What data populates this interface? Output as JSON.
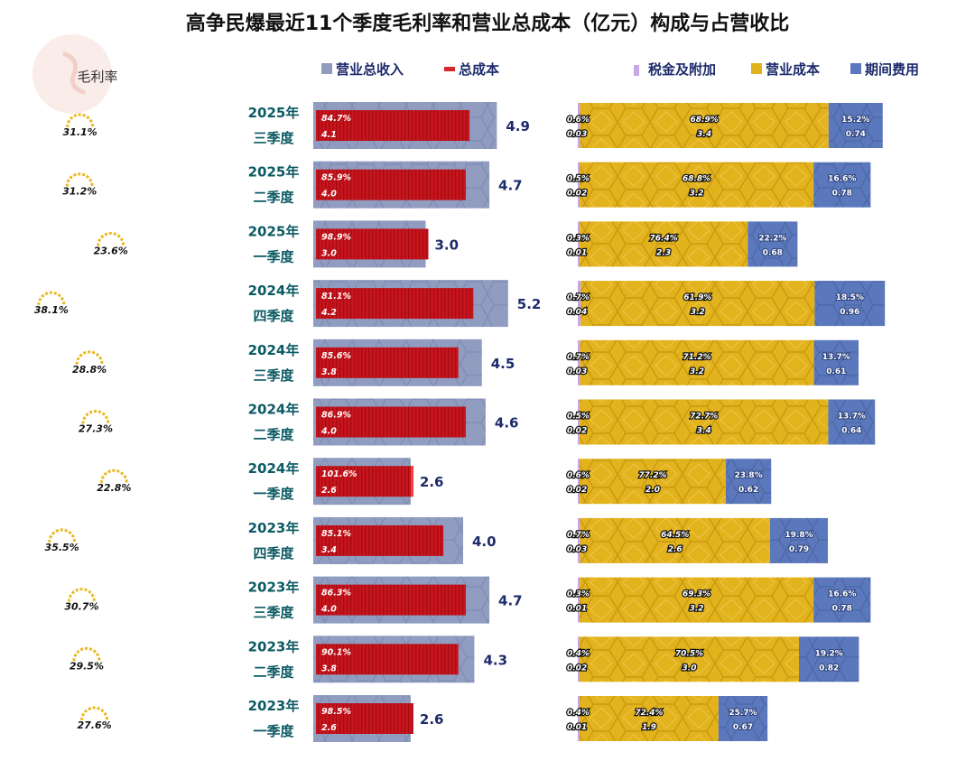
{
  "title": "高争民爆最近11个季度毛利率和营业总成本（亿元）构成与占营收比",
  "gross_margin_header": "毛利率",
  "legend_left": [
    {
      "label": "营业总收入",
      "color": "#8f9cc0"
    },
    {
      "label": "总成本",
      "color": "#d9272e"
    }
  ],
  "legend_right": [
    {
      "label": "税金及附加",
      "color": "#c9a6e6"
    },
    {
      "label": "营业成本",
      "color": "#e0b21c"
    },
    {
      "label": "期间费用",
      "color": "#5a78bb"
    }
  ],
  "chart_data": {
    "type": "bar",
    "title": "高争民爆最近11个季度毛利率和营业总成本（亿元）构成与占营收比",
    "periods": [
      {
        "year": "2025年",
        "quarter": "三季度",
        "gross_margin": "31.1%",
        "revenue": 4.9,
        "revenue_label": "4.9",
        "total_cost": 4.1,
        "total_cost_label": "4.1",
        "cost_ratio": "84.7%",
        "tax": 0.03,
        "tax_label": "0.03",
        "tax_pct": "0.6%",
        "op_cost": 3.4,
        "op_cost_label": "3.4",
        "op_cost_pct": "68.9%",
        "expense": 0.74,
        "expense_label": "0.74",
        "expense_pct": "15.2%"
      },
      {
        "year": "2025年",
        "quarter": "二季度",
        "gross_margin": "31.2%",
        "revenue": 4.7,
        "revenue_label": "4.7",
        "total_cost": 4.0,
        "total_cost_label": "4.0",
        "cost_ratio": "85.9%",
        "tax": 0.02,
        "tax_label": "0.02",
        "tax_pct": "0.5%",
        "op_cost": 3.2,
        "op_cost_label": "3.2",
        "op_cost_pct": "68.8%",
        "expense": 0.78,
        "expense_label": "0.78",
        "expense_pct": "16.6%"
      },
      {
        "year": "2025年",
        "quarter": "一季度",
        "gross_margin": "23.6%",
        "revenue": 3.0,
        "revenue_label": "3.0",
        "total_cost": 3.0,
        "total_cost_label": "3.0",
        "cost_ratio": "98.9%",
        "tax": 0.01,
        "tax_label": "0.01",
        "tax_pct": "0.3%",
        "op_cost": 2.3,
        "op_cost_label": "2.3",
        "op_cost_pct": "76.4%",
        "expense": 0.68,
        "expense_label": "0.68",
        "expense_pct": "22.2%"
      },
      {
        "year": "2024年",
        "quarter": "四季度",
        "gross_margin": "38.1%",
        "revenue": 5.2,
        "revenue_label": "5.2",
        "total_cost": 4.2,
        "total_cost_label": "4.2",
        "cost_ratio": "81.1%",
        "tax": 0.04,
        "tax_label": "0.04",
        "tax_pct": "0.7%",
        "op_cost": 3.2,
        "op_cost_label": "3.2",
        "op_cost_pct": "61.9%",
        "expense": 0.96,
        "expense_label": "0.96",
        "expense_pct": "18.5%"
      },
      {
        "year": "2024年",
        "quarter": "三季度",
        "gross_margin": "28.8%",
        "revenue": 4.5,
        "revenue_label": "4.5",
        "total_cost": 3.8,
        "total_cost_label": "3.8",
        "cost_ratio": "85.6%",
        "tax": 0.03,
        "tax_label": "0.03",
        "tax_pct": "0.7%",
        "op_cost": 3.2,
        "op_cost_label": "3.2",
        "op_cost_pct": "71.2%",
        "expense": 0.61,
        "expense_label": "0.61",
        "expense_pct": "13.7%"
      },
      {
        "year": "2024年",
        "quarter": "二季度",
        "gross_margin": "27.3%",
        "revenue": 4.6,
        "revenue_label": "4.6",
        "total_cost": 4.0,
        "total_cost_label": "4.0",
        "cost_ratio": "86.9%",
        "tax": 0.02,
        "tax_label": "0.02",
        "tax_pct": "0.5%",
        "op_cost": 3.4,
        "op_cost_label": "3.4",
        "op_cost_pct": "72.7%",
        "expense": 0.64,
        "expense_label": "0.64",
        "expense_pct": "13.7%"
      },
      {
        "year": "2024年",
        "quarter": "一季度",
        "gross_margin": "22.8%",
        "revenue": 2.6,
        "revenue_label": "2.6",
        "total_cost": 2.6,
        "total_cost_label": "2.6",
        "cost_ratio": "101.6%",
        "tax": 0.02,
        "tax_label": "0.02",
        "tax_pct": "0.6%",
        "op_cost": 2.0,
        "op_cost_label": "2.0",
        "op_cost_pct": "77.2%",
        "expense": 0.62,
        "expense_label": "0.62",
        "expense_pct": "23.8%"
      },
      {
        "year": "2023年",
        "quarter": "四季度",
        "gross_margin": "35.5%",
        "revenue": 4.0,
        "revenue_label": "4.0",
        "total_cost": 3.4,
        "total_cost_label": "3.4",
        "cost_ratio": "85.1%",
        "tax": 0.03,
        "tax_label": "0.03",
        "tax_pct": "0.7%",
        "op_cost": 2.6,
        "op_cost_label": "2.6",
        "op_cost_pct": "64.5%",
        "expense": 0.79,
        "expense_label": "0.79",
        "expense_pct": "19.8%"
      },
      {
        "year": "2023年",
        "quarter": "三季度",
        "gross_margin": "30.7%",
        "revenue": 4.7,
        "revenue_label": "4.7",
        "total_cost": 4.0,
        "total_cost_label": "4.0",
        "cost_ratio": "86.3%",
        "tax": 0.01,
        "tax_label": "0.01",
        "tax_pct": "0.3%",
        "op_cost": 3.2,
        "op_cost_label": "3.2",
        "op_cost_pct": "69.3%",
        "expense": 0.78,
        "expense_label": "0.78",
        "expense_pct": "16.6%"
      },
      {
        "year": "2023年",
        "quarter": "二季度",
        "gross_margin": "29.5%",
        "revenue": 4.3,
        "revenue_label": "4.3",
        "total_cost": 3.8,
        "total_cost_label": "3.8",
        "cost_ratio": "90.1%",
        "tax": 0.02,
        "tax_label": "0.02",
        "tax_pct": "0.4%",
        "op_cost": 3.0,
        "op_cost_label": "3.0",
        "op_cost_pct": "70.5%",
        "expense": 0.82,
        "expense_label": "0.82",
        "expense_pct": "19.2%"
      },
      {
        "year": "2023年",
        "quarter": "一季度",
        "gross_margin": "27.6%",
        "revenue": 2.6,
        "revenue_label": "2.6",
        "total_cost": 2.6,
        "total_cost_label": "2.6",
        "cost_ratio": "98.5%",
        "tax": 0.01,
        "tax_label": "0.01",
        "tax_pct": "0.4%",
        "op_cost": 1.9,
        "op_cost_label": "1.9",
        "op_cost_pct": "72.4%",
        "expense": 0.67,
        "expense_label": "0.67",
        "expense_pct": "25.7%"
      }
    ]
  }
}
